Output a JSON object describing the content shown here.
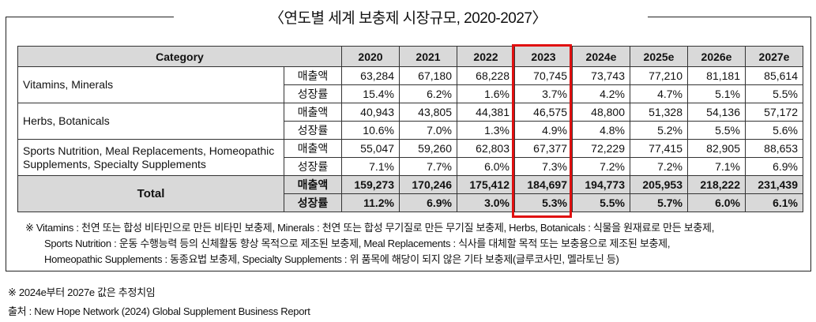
{
  "title": "〈연도별 세계 보충제 시장규모, 2020-2027〉",
  "table": {
    "header_category": "Category",
    "years": [
      "2020",
      "2021",
      "2022",
      "2023",
      "2024e",
      "2025e",
      "2026e",
      "2027e"
    ],
    "highlighted_year": "2023",
    "highlight_color": "#e01010",
    "rows": [
      {
        "category": "Vitamins,  Minerals",
        "sales_label": "매출액",
        "growth_label": "성장률",
        "sales": [
          "63,284",
          "67,180",
          "68,228",
          "70,745",
          "73,743",
          "77,210",
          "81,181",
          "85,614"
        ],
        "growth": [
          "15.4%",
          "6.2%",
          "1.6%",
          "3.7%",
          "4.2%",
          "4.7%",
          "5.1%",
          "5.5%"
        ]
      },
      {
        "category": "Herbs,  Botanicals",
        "sales_label": "매출액",
        "growth_label": "성장률",
        "sales": [
          "40,943",
          "43,805",
          "44,381",
          "46,575",
          "48,800",
          "51,328",
          "54,136",
          "57,172"
        ],
        "growth": [
          "10.6%",
          "7.0%",
          "1.3%",
          "4.9%",
          "4.8%",
          "5.2%",
          "5.5%",
          "5.6%"
        ]
      },
      {
        "category": "Sports Nutrition, Meal Replacements, Homeopathic Supplements, Specialty Supplements",
        "sales_label": "매출액",
        "growth_label": "성장률",
        "sales": [
          "55,047",
          "59,260",
          "62,803",
          "67,377",
          "72,229",
          "77,415",
          "82,905",
          "88,653"
        ],
        "growth": [
          "7.1%",
          "7.7%",
          "6.0%",
          "7.3%",
          "7.2%",
          "7.2%",
          "7.1%",
          "6.9%"
        ]
      },
      {
        "category": "Total",
        "sales_label": "매출액",
        "growth_label": "성장률",
        "sales": [
          "159,273",
          "170,246",
          "175,412",
          "184,697",
          "194,773",
          "205,953",
          "218,222",
          "231,439"
        ],
        "growth": [
          "11.2%",
          "6.9%",
          "3.0%",
          "5.3%",
          "5.5%",
          "5.7%",
          "6.0%",
          "6.1%"
        ]
      }
    ]
  },
  "notes": [
    "※ Vitamins : 천연 또는 합성 비타민으로 만든 비타민 보충제, Minerals : 천연 또는 합성 무기질로 만든 무기질 보충제, Herbs, Botanicals : 식물을 원재료로 만든 보충제,",
    "Sports Nutrition : 운동 수행능력 등의 신체활동 향상 목적으로 제조된 보충제, Meal Replacements : 식사를 대체할 목적 또는 보충용으로 제조된 보충제,",
    "Homeopathic Supplements : 동종요법 보충제, Specialty Supplements : 위 품목에 해당이 되지 않은 기타 보충제(글루코사민, 멜라토닌 등)"
  ],
  "footnote": "※ 2024e부터 2027e 값은 추정치임",
  "source": "출처 : New Hope Network (2024) Global Supplement Business Report"
}
